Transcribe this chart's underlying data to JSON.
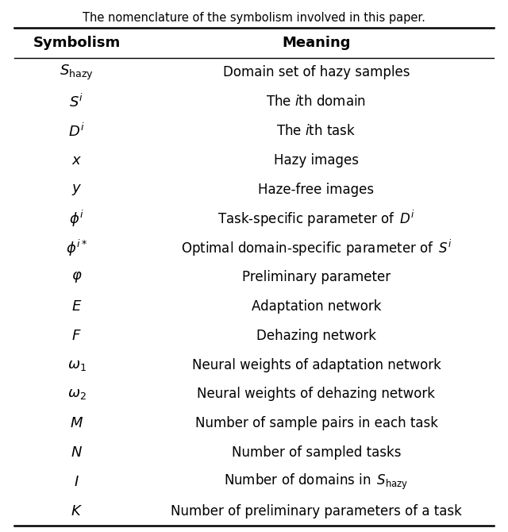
{
  "title": "The nomenclature of the symbolism involved in this paper.",
  "col_header": [
    "Symbolism",
    "Meaning"
  ],
  "rows": [
    {
      "sym": "$S_{\\mathrm{hazy}}$",
      "meaning": "Domain set of hazy samples"
    },
    {
      "sym": "$S^{i}$",
      "meaning": "The $i$th domain"
    },
    {
      "sym": "$D^{i}$",
      "meaning": "The $i$th task"
    },
    {
      "sym": "$x$",
      "meaning": "Hazy images"
    },
    {
      "sym": "$y$",
      "meaning": "Haze-free images"
    },
    {
      "sym": "$\\phi^{i}$",
      "meaning": "Task-specific parameter of $\\,D^{i}$"
    },
    {
      "sym": "$\\phi^{i*}$",
      "meaning": "Optimal domain-specific parameter of $\\,S^{i}$"
    },
    {
      "sym": "$\\varphi$",
      "meaning": "Preliminary parameter"
    },
    {
      "sym": "$E$",
      "meaning": "Adaptation network"
    },
    {
      "sym": "$F$",
      "meaning": "Dehazing network"
    },
    {
      "sym": "$\\omega_{1}$",
      "meaning": "Neural weights of adaptation network"
    },
    {
      "sym": "$\\omega_{2}$",
      "meaning": "Neural weights of dehazing network"
    },
    {
      "sym": "$M$",
      "meaning": "Number of sample pairs in each task"
    },
    {
      "sym": "$N$",
      "meaning": "Number of sampled tasks"
    },
    {
      "sym": "$I$",
      "meaning": "Number of domains in $\\,S_{\\mathrm{hazy}}$"
    },
    {
      "sym": "$K$",
      "meaning": "Number of preliminary parameters of a task"
    }
  ],
  "bg_color": "#ffffff",
  "text_color": "#000000",
  "title_fontsize": 10.5,
  "header_fontsize": 13,
  "sym_fontsize": 13,
  "meaning_fontsize": 12
}
